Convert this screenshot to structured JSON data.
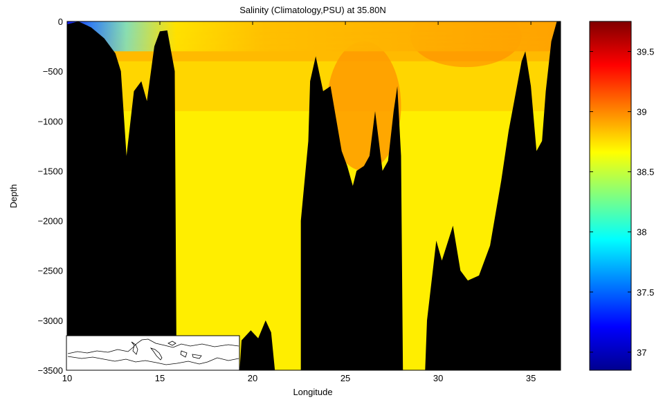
{
  "chart_data": {
    "type": "heatmap",
    "title": "Salinity (Climatology,PSU) at 35.80N",
    "xlabel": "Longitude",
    "ylabel": "Depth",
    "xlim": [
      10,
      36.6
    ],
    "ylim": [
      -3500,
      0
    ],
    "x_ticks": [
      10,
      15,
      20,
      25,
      30,
      35
    ],
    "y_ticks": [
      0,
      -500,
      -1000,
      -1500,
      -2000,
      -2500,
      -3000,
      -3500
    ],
    "colorbar": {
      "range": [
        36.85,
        39.75
      ],
      "ticks": [
        "37",
        "37.5",
        "38",
        "38.5",
        "39",
        "39.5"
      ],
      "colormap": "jet"
    },
    "bathymetry": [
      [
        10.0,
        -3500
      ],
      [
        10.0,
        -30
      ],
      [
        10.6,
        0
      ],
      [
        11.3,
        -60
      ],
      [
        12.0,
        -170
      ],
      [
        12.6,
        -320
      ],
      [
        12.9,
        -500
      ],
      [
        13.2,
        -1350
      ],
      [
        13.6,
        -700
      ],
      [
        14.0,
        -600
      ],
      [
        14.3,
        -800
      ],
      [
        14.7,
        -250
      ],
      [
        15.0,
        -100
      ],
      [
        15.4,
        -90
      ],
      [
        15.8,
        -500
      ],
      [
        15.9,
        -3500
      ],
      [
        19.3,
        -3500
      ],
      [
        19.4,
        -3200
      ],
      [
        19.9,
        -3100
      ],
      [
        20.3,
        -3180
      ],
      [
        20.7,
        -3000
      ],
      [
        21.0,
        -3120
      ],
      [
        21.2,
        -3500
      ],
      [
        22.6,
        -3500
      ],
      [
        22.6,
        -2000
      ],
      [
        23.0,
        -1200
      ],
      [
        23.1,
        -600
      ],
      [
        23.4,
        -350
      ],
      [
        23.8,
        -700
      ],
      [
        24.2,
        -650
      ],
      [
        24.8,
        -1300
      ],
      [
        25.1,
        -1450
      ],
      [
        25.4,
        -1650
      ],
      [
        25.6,
        -1500
      ],
      [
        26.0,
        -1450
      ],
      [
        26.3,
        -1350
      ],
      [
        26.6,
        -900
      ],
      [
        27.0,
        -1500
      ],
      [
        27.3,
        -1400
      ],
      [
        27.6,
        -900
      ],
      [
        27.8,
        -650
      ],
      [
        28.0,
        -1350
      ],
      [
        28.1,
        -3500
      ],
      [
        29.3,
        -3500
      ],
      [
        29.4,
        -3000
      ],
      [
        29.9,
        -2200
      ],
      [
        30.2,
        -2400
      ],
      [
        30.8,
        -2050
      ],
      [
        31.2,
        -2500
      ],
      [
        31.6,
        -2600
      ],
      [
        32.2,
        -2550
      ],
      [
        32.8,
        -2250
      ],
      [
        33.4,
        -1600
      ],
      [
        33.8,
        -1100
      ],
      [
        34.1,
        -800
      ],
      [
        34.5,
        -400
      ],
      [
        34.7,
        -300
      ],
      [
        35.0,
        -650
      ],
      [
        35.3,
        -1300
      ],
      [
        35.6,
        -1200
      ],
      [
        35.8,
        -700
      ],
      [
        36.1,
        -200
      ],
      [
        36.4,
        0
      ],
      [
        36.6,
        0
      ],
      [
        36.6,
        -3500
      ]
    ],
    "surface_salinity": {
      "min": 37.3,
      "max": 39.1
    },
    "intermediate_maximum": {
      "lon_range": [
        24,
        28
      ],
      "depth_range": [
        -1500,
        -200
      ],
      "value": 38.95
    },
    "deep_value": 38.72,
    "inset": "map-of-mediterranean"
  }
}
